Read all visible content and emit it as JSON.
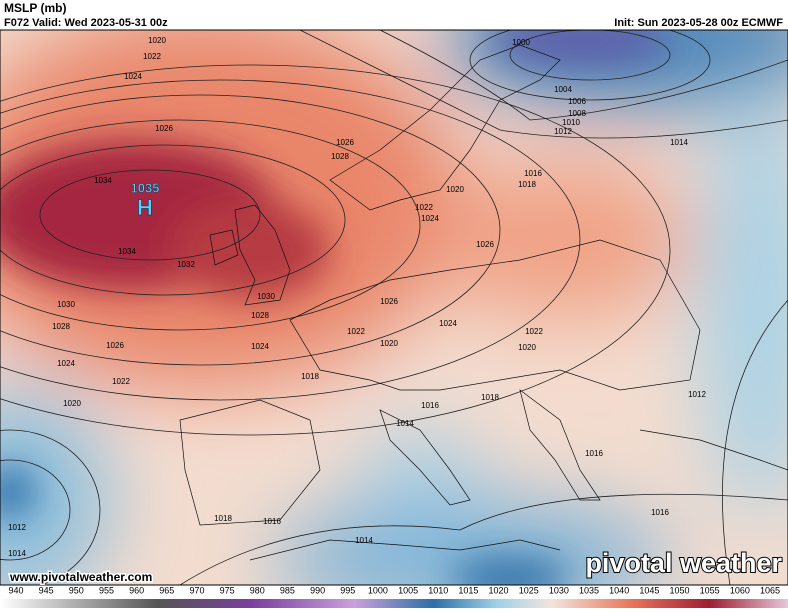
{
  "header": {
    "title": "MSLP (mb)",
    "valid": "F072 Valid: Wed 2023-05-31 00z",
    "init": "Init: Sun 2023-05-28 00z ECMWF"
  },
  "high": {
    "value": 1035,
    "letter": "H"
  },
  "isobar_labels": [
    1020,
    1022,
    1024,
    1026,
    1026,
    1028,
    1034,
    1034,
    1032,
    1030,
    1030,
    1028,
    1028,
    1026,
    1026,
    1024,
    1024,
    1022,
    1022,
    1020,
    1020,
    1018,
    1016,
    1014,
    1018,
    1020,
    1022,
    1024,
    1026,
    1024,
    1022,
    1020,
    1016,
    1018,
    1014,
    1000,
    1004,
    1006,
    1008,
    1010,
    1012,
    1012,
    1016,
    1016,
    1018,
    1016,
    1014,
    1012,
    1014
  ],
  "colorbar_ticks": [
    940,
    945,
    950,
    955,
    960,
    965,
    970,
    975,
    980,
    985,
    990,
    995,
    1000,
    1005,
    1010,
    1015,
    1020,
    1025,
    1030,
    1035,
    1040,
    1045,
    1050,
    1055,
    1060,
    1065
  ],
  "footer": {
    "url": "www.pivotalweather.com",
    "logo": "pivotal weather"
  }
}
